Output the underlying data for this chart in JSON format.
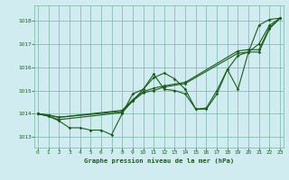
{
  "title": "Graphe pression niveau de la mer (hPa)",
  "bg_color": "#d0ecf0",
  "grid_color": "#7ab5a8",
  "line_color": "#1a5c1a",
  "xlim": [
    -0.3,
    23.3
  ],
  "ylim": [
    1012.55,
    1018.65
  ],
  "yticks": [
    1013,
    1014,
    1015,
    1016,
    1017,
    1018
  ],
  "xticks": [
    0,
    1,
    2,
    3,
    4,
    5,
    6,
    7,
    8,
    9,
    10,
    11,
    12,
    13,
    14,
    15,
    16,
    17,
    18,
    19,
    20,
    21,
    22,
    23
  ],
  "series": [
    {
      "x": [
        0,
        1,
        2,
        3,
        4,
        5,
        6,
        7,
        8,
        9,
        10,
        11,
        12,
        13,
        14,
        15,
        16,
        17,
        18,
        19,
        20,
        21,
        22,
        23
      ],
      "y": [
        1014.0,
        1013.9,
        1013.7,
        1013.4,
        1013.4,
        1013.3,
        1013.3,
        1013.1,
        1014.0,
        1014.85,
        1015.05,
        1015.7,
        1015.05,
        1015.0,
        1014.85,
        1014.2,
        1014.25,
        1015.0,
        1015.9,
        1015.05,
        1016.65,
        1017.8,
        1018.05,
        1018.1
      ]
    },
    {
      "x": [
        0,
        1,
        2,
        8,
        9,
        10,
        11,
        12,
        13,
        14,
        15,
        16,
        17,
        18,
        19,
        20,
        21,
        22,
        23
      ],
      "y": [
        1014.0,
        1013.9,
        1013.75,
        1014.05,
        1014.55,
        1015.05,
        1015.55,
        1015.75,
        1015.5,
        1015.05,
        1014.2,
        1014.2,
        1014.85,
        1015.9,
        1016.5,
        1016.65,
        1017.0,
        1017.8,
        1018.1
      ]
    },
    {
      "x": [
        0,
        1,
        2,
        8,
        9,
        10,
        11,
        12,
        14,
        19,
        20,
        21,
        22,
        23
      ],
      "y": [
        1014.0,
        1013.95,
        1013.85,
        1014.1,
        1014.55,
        1014.9,
        1015.0,
        1015.15,
        1015.3,
        1016.6,
        1016.65,
        1016.65,
        1017.65,
        1018.1
      ]
    },
    {
      "x": [
        0,
        1,
        2,
        8,
        9,
        10,
        11,
        12,
        14,
        19,
        20,
        21,
        22,
        23
      ],
      "y": [
        1014.0,
        1013.95,
        1013.85,
        1014.15,
        1014.6,
        1014.95,
        1015.1,
        1015.2,
        1015.35,
        1016.7,
        1016.75,
        1016.75,
        1017.7,
        1018.1
      ]
    }
  ]
}
